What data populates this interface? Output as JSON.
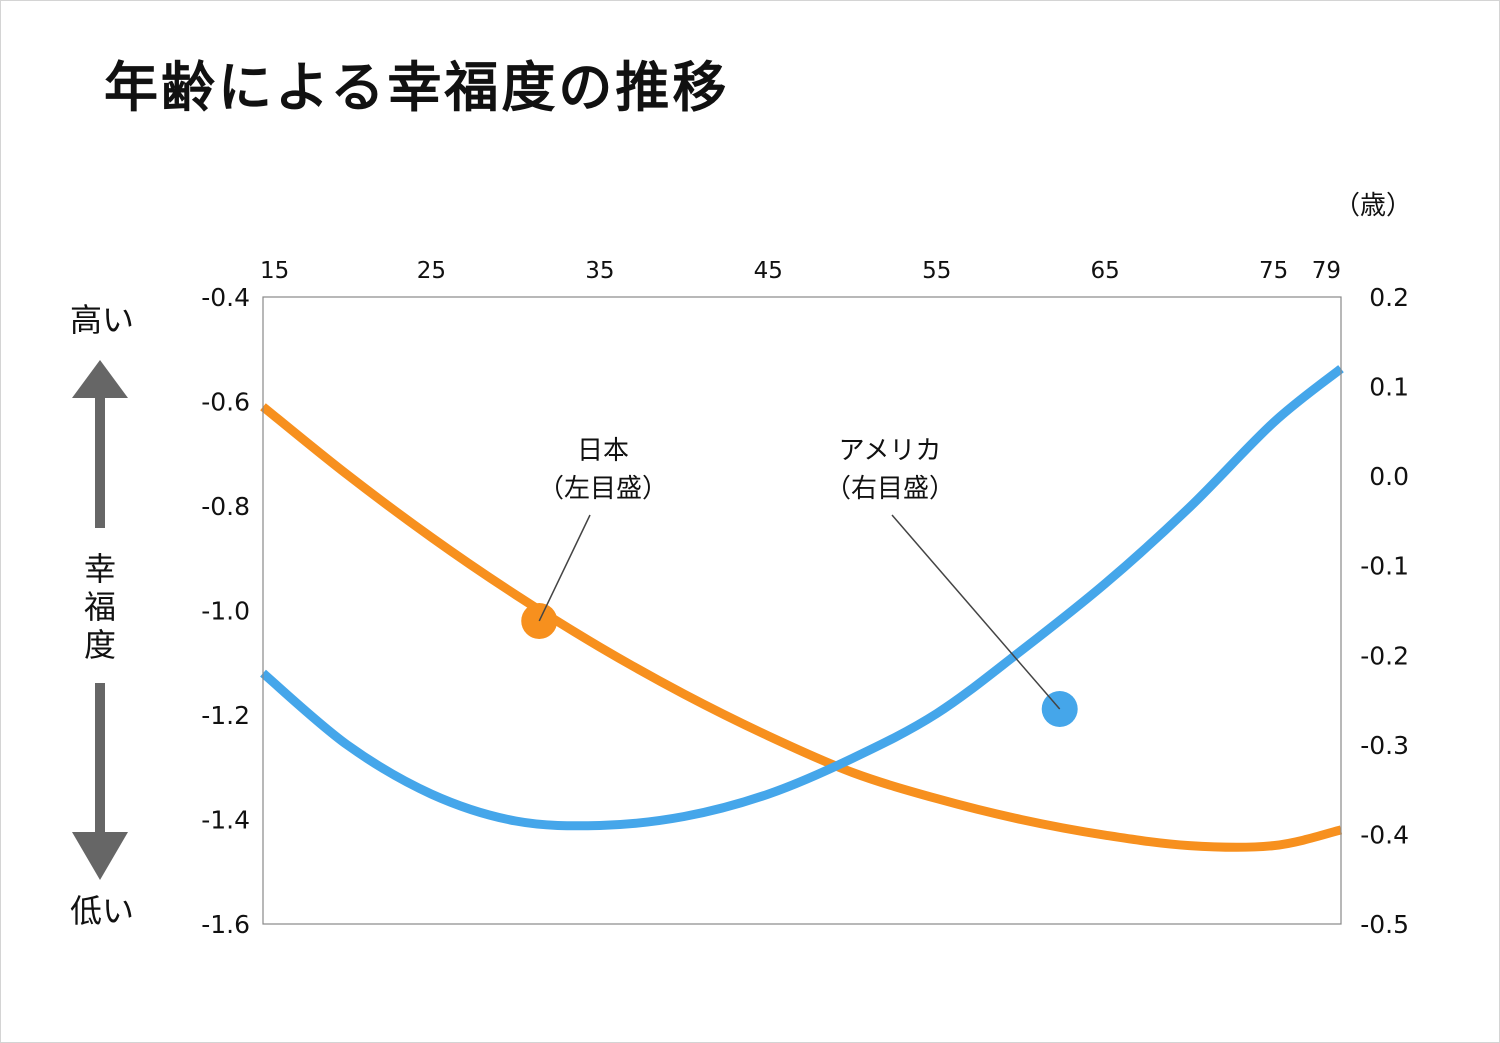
{
  "title": "年齢による幸福度の推移",
  "colors": {
    "japan": "#f7901e",
    "usa": "#45a6ea",
    "arrow": "#666666",
    "axis": "#888888"
  },
  "y_indicator": {
    "high": "高い",
    "low": "低い",
    "label_chars": [
      "幸",
      "福",
      "度"
    ]
  },
  "chart_data": {
    "type": "line",
    "x_unit_label": "（歳）",
    "x_ticks": [
      15,
      25,
      35,
      45,
      55,
      65,
      75,
      79
    ],
    "xlim": [
      15,
      79
    ],
    "left_axis": {
      "ticks": [
        "-0.4",
        "-0.6",
        "-0.8",
        "-1.0",
        "-1.2",
        "-1.4",
        "-1.6"
      ],
      "ylim": [
        -1.6,
        -0.4
      ]
    },
    "right_axis": {
      "ticks": [
        "0.2",
        "0.1",
        "0.0",
        "-0.1",
        "-0.2",
        "-0.3",
        "-0.4",
        "-0.5"
      ],
      "ylim": [
        -0.5,
        0.2
      ]
    },
    "series": [
      {
        "name": "日本",
        "axis_note": "（左目盛）",
        "axis": "left",
        "color": "#f7901e",
        "x": [
          15,
          20,
          25,
          30,
          35,
          40,
          45,
          50,
          55,
          60,
          65,
          70,
          75,
          79
        ],
        "y": [
          -0.61,
          -0.74,
          -0.86,
          -0.97,
          -1.07,
          -1.16,
          -1.24,
          -1.31,
          -1.36,
          -1.4,
          -1.43,
          -1.45,
          -1.45,
          -1.42
        ],
        "marker_x": 31.4,
        "marker_y": -1.02
      },
      {
        "name": "アメリカ",
        "axis_note": "（右目盛）",
        "axis": "right",
        "color": "#45a6ea",
        "x": [
          15,
          20,
          25,
          30,
          35,
          40,
          45,
          50,
          55,
          60,
          65,
          70,
          75,
          79
        ],
        "y": [
          -0.22,
          -0.3,
          -0.355,
          -0.385,
          -0.39,
          -0.38,
          -0.355,
          -0.315,
          -0.265,
          -0.195,
          -0.12,
          -0.035,
          0.06,
          0.12
        ],
        "marker_x": 62.3,
        "marker_y": -0.26
      }
    ]
  }
}
